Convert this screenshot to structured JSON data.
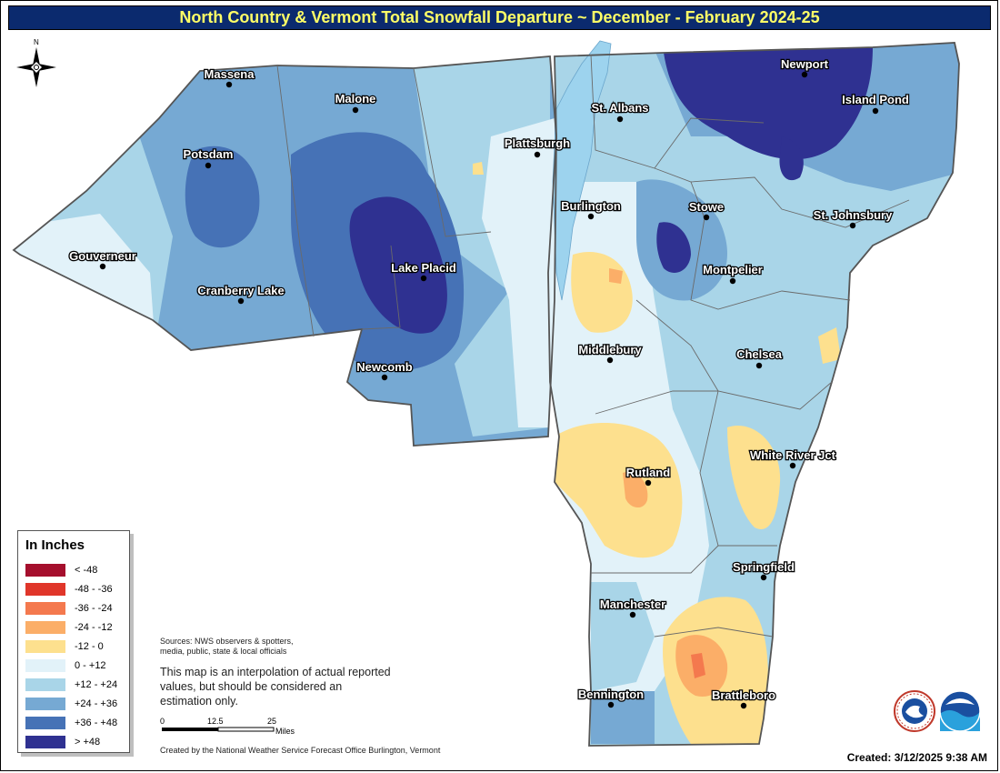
{
  "title": "North Country & Vermont Total Snowfall Departure ~ December - February 2024-25",
  "compass": {
    "label": "N",
    "icon": "compass-rose-icon"
  },
  "cities": [
    {
      "id": "massena",
      "name": "Massena"
    },
    {
      "id": "malone",
      "name": "Malone"
    },
    {
      "id": "potsdam",
      "name": "Potsdam"
    },
    {
      "id": "gouverneur",
      "name": "Gouverneur"
    },
    {
      "id": "cranberry-lake",
      "name": "Cranberry Lake"
    },
    {
      "id": "lake-placid",
      "name": "Lake Placid"
    },
    {
      "id": "newcomb",
      "name": "Newcomb"
    },
    {
      "id": "plattsburgh",
      "name": "Plattsburgh"
    },
    {
      "id": "st-albans",
      "name": "St. Albans"
    },
    {
      "id": "burlington",
      "name": "Burlington"
    },
    {
      "id": "newport",
      "name": "Newport"
    },
    {
      "id": "island-pond",
      "name": "Island Pond"
    },
    {
      "id": "stowe",
      "name": "Stowe"
    },
    {
      "id": "st-johnsbury",
      "name": "St. Johnsbury"
    },
    {
      "id": "montpelier",
      "name": "Montpelier"
    },
    {
      "id": "middlebury",
      "name": "Middlebury"
    },
    {
      "id": "chelsea",
      "name": "Chelsea"
    },
    {
      "id": "white-river-jct",
      "name": "White River Jct"
    },
    {
      "id": "rutland",
      "name": "Rutland"
    },
    {
      "id": "springfield",
      "name": "Springfield"
    },
    {
      "id": "manchester",
      "name": "Manchester"
    },
    {
      "id": "bennington",
      "name": "Bennington"
    },
    {
      "id": "brattleboro",
      "name": "Brattleboro"
    }
  ],
  "legend": {
    "title": "In Inches",
    "items": [
      {
        "label": "< -48",
        "color": "#a50f2d"
      },
      {
        "label": "-48 - -36",
        "color": "#e0362a"
      },
      {
        "label": "-36 - -24",
        "color": "#f4794e"
      },
      {
        "label": "-24 - -12",
        "color": "#fbae68"
      },
      {
        "label": "-12 - 0",
        "color": "#fde08e"
      },
      {
        "label": "0 - +12",
        "color": "#e2f2f9"
      },
      {
        "label": "+12 - +24",
        "color": "#a9d5e8"
      },
      {
        "label": "+24 - +36",
        "color": "#76a9d3"
      },
      {
        "label": "+36 - +48",
        "color": "#4672b6"
      },
      {
        "label": "> +48",
        "color": "#2f3191"
      }
    ]
  },
  "sources": {
    "line1": "Sources: NWS observers & spotters,",
    "line2": "media, public, state & local officials"
  },
  "disclaimer": {
    "line1": "This map is an interpolation of actual reported",
    "line2": "values, but should be considered an",
    "line3": "estimation only."
  },
  "scale_bar": {
    "tick0": "0",
    "tick1": "12.5",
    "tick2": "25",
    "unit": "Miles"
  },
  "created_by": "Created by the National Weather Service Forecast Office Burlington, Vermont",
  "created_date": "Created: 3/12/2025 9:38 AM",
  "logos": {
    "nws": "nws-logo-icon",
    "noaa": "noaa-logo-icon"
  },
  "water_color": "#9dd3ee",
  "border_color": "#555555"
}
